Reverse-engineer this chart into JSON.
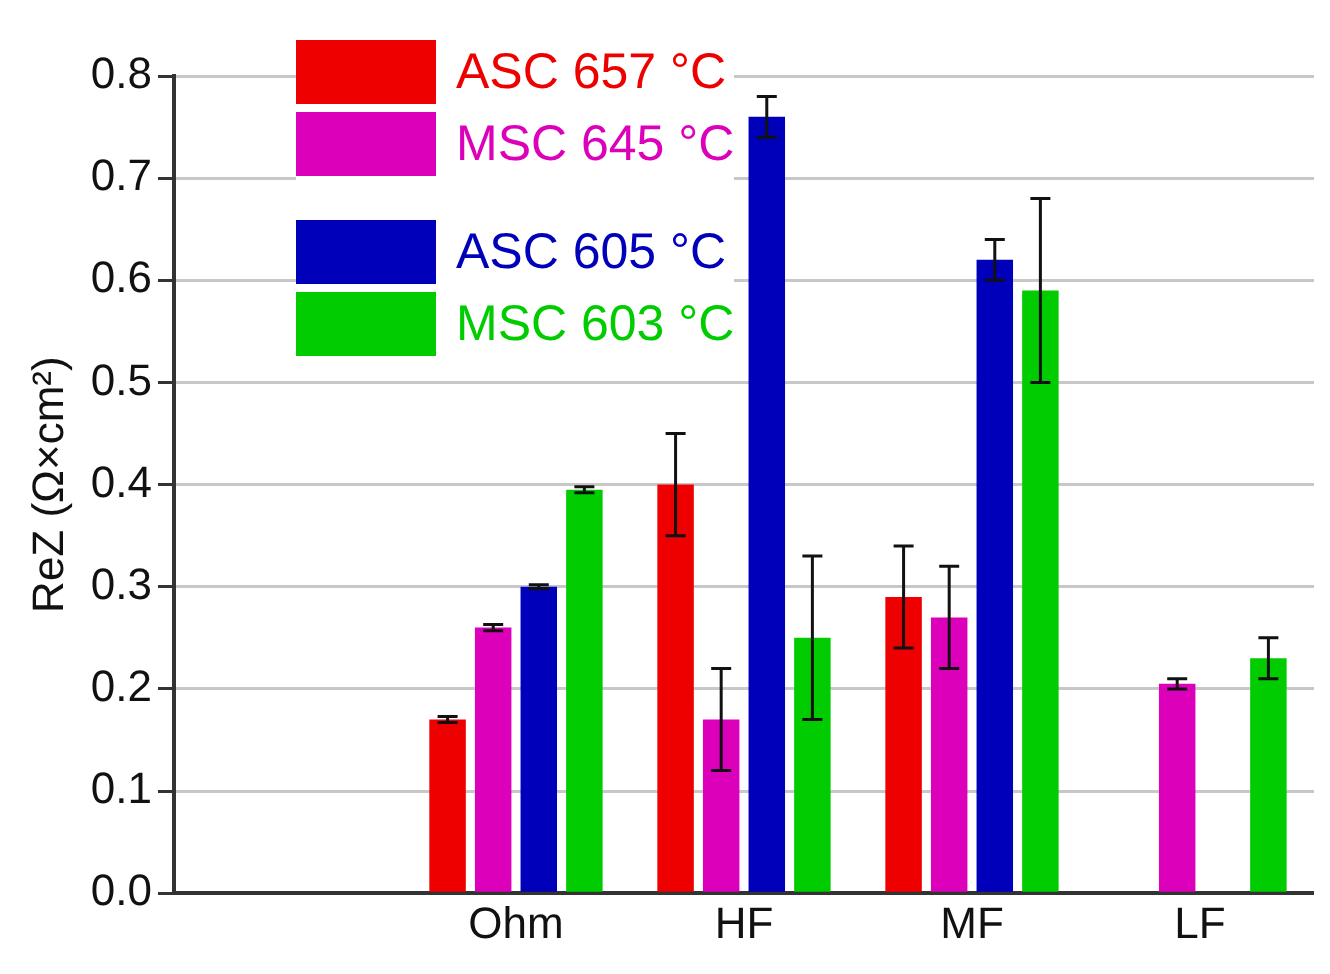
{
  "chart_data": {
    "type": "bar",
    "ylabel": "ReZ (Ω×cm²)",
    "categories": [
      null,
      "Ohm",
      "HF",
      "MF",
      "LF"
    ],
    "series": [
      {
        "name": "ASC 657 °C",
        "color": "#ee0000",
        "values": [
          null,
          0.17,
          0.4,
          0.29,
          null
        ],
        "errors": [
          null,
          0.003,
          0.05,
          0.05,
          null
        ]
      },
      {
        "name": "MSC 645 °C",
        "color": "#dd00bb",
        "values": [
          null,
          0.26,
          0.17,
          0.27,
          0.205
        ],
        "errors": [
          null,
          0.003,
          0.05,
          0.05,
          0.005
        ]
      },
      {
        "name": "ASC 605 °C",
        "color": "#0000bb",
        "values": [
          null,
          0.3,
          0.76,
          0.62,
          null
        ],
        "errors": [
          null,
          0.002,
          0.02,
          0.02,
          null
        ]
      },
      {
        "name": "MSC 603 °C",
        "color": "#00cc00",
        "values": [
          null,
          0.395,
          0.25,
          0.59,
          0.23
        ],
        "errors": [
          null,
          0.003,
          0.08,
          0.09,
          0.02
        ]
      }
    ],
    "ylim": [
      0,
      0.8
    ],
    "yticks": [
      {
        "value": 0,
        "label": "0.0"
      },
      0.1,
      0.2,
      0.3,
      0.4,
      0.5,
      0.6,
      0.7,
      0.8
    ],
    "grid": "y",
    "legend": "top left"
  }
}
